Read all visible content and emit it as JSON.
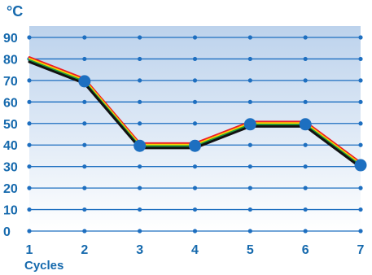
{
  "chart_data": {
    "type": "line",
    "unit_label": "°C",
    "xlabel": "Cycles",
    "categories": [
      "1",
      "2",
      "3",
      "4",
      "5",
      "6",
      "7"
    ],
    "x": [
      1,
      2,
      3,
      4,
      5,
      6,
      7
    ],
    "yticks": [
      0,
      10,
      20,
      30,
      40,
      50,
      60,
      70,
      80,
      90
    ],
    "ylim": [
      0,
      90
    ],
    "series": [
      {
        "values": [
          80,
          70,
          40,
          40,
          50,
          50,
          31
        ],
        "marker_indices": [
          1,
          2,
          3,
          4,
          5,
          6
        ]
      }
    ],
    "grid": true,
    "background": "blue-to-white vertical gradient",
    "colors": {
      "axis_text": "#1569ad",
      "grid": "#1e6fc0",
      "marker_fill": "#1d6fc0",
      "background_top": "#bcd2ec",
      "background_bottom": "#ffffff",
      "stripe_outer": "#ee1c24",
      "stripe_middle": "#ffd200",
      "stripe_inner": "#1f9c3d",
      "line_core": "#111111"
    }
  }
}
